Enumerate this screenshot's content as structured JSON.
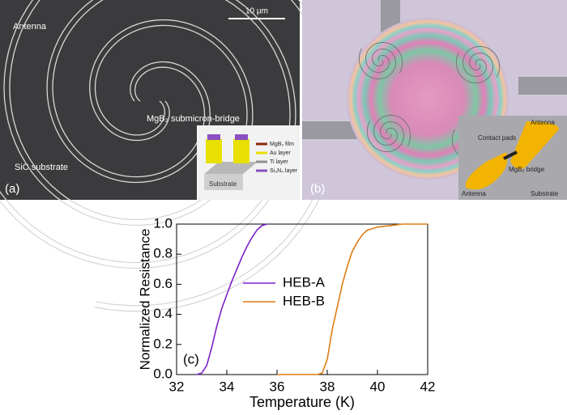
{
  "panel_a": {
    "label": "(a)",
    "scale_bar": "10 μm",
    "antenna": "Antenna",
    "bridge": "MgB₂ submicron-bridge",
    "substrate": "SiC substrate",
    "inset": {
      "substrate": "Substrate",
      "legend": [
        "MgB₂ film",
        "Au layer",
        "Ti layer",
        "Si₃N₄ layer"
      ]
    }
  },
  "panel_b": {
    "label": "(b)",
    "inset": {
      "antenna_top": "Antenna",
      "contact_pads": "Contact pads",
      "bridge": "MgB₂ bridge",
      "antenna_bottom": "Antenna",
      "substrate": "Substrate"
    }
  },
  "chart_data": {
    "type": "line",
    "panel_label": "(c)",
    "x_label": "Temperature (K)",
    "y_label": "Normalized Resistance",
    "xlim": [
      32,
      42
    ],
    "xticks": [
      32,
      34,
      36,
      38,
      40,
      42
    ],
    "ylim": [
      0,
      1
    ],
    "yticks": [
      {
        "value": 0,
        "label": "0.0"
      },
      0.2,
      0.4,
      0.6,
      0.8,
      {
        "value": 1,
        "label": "1.0"
      }
    ],
    "series": [
      {
        "name": "HEB-A",
        "color": "#7b22c8",
        "x": [
          32.8,
          33.0,
          33.2,
          33.4,
          33.6,
          33.8,
          34.0,
          34.2,
          34.4,
          34.6,
          34.8,
          35.0,
          35.2,
          35.4,
          35.6
        ],
        "values": [
          0,
          0.01,
          0.06,
          0.18,
          0.32,
          0.44,
          0.53,
          0.62,
          0.7,
          0.78,
          0.85,
          0.91,
          0.96,
          0.99,
          1.0
        ]
      },
      {
        "name": "HEB-B",
        "color": "#e07d12",
        "x": [
          36.0,
          37.0,
          37.6,
          37.8,
          38.0,
          38.2,
          38.4,
          38.6,
          38.8,
          39.0,
          39.2,
          39.4,
          39.6,
          39.8,
          40.0,
          40.5,
          41.0,
          42.0
        ],
        "values": [
          0,
          0,
          0,
          0.01,
          0.1,
          0.3,
          0.45,
          0.6,
          0.72,
          0.82,
          0.88,
          0.93,
          0.96,
          0.97,
          0.98,
          0.99,
          1.0,
          1.0
        ]
      }
    ]
  }
}
